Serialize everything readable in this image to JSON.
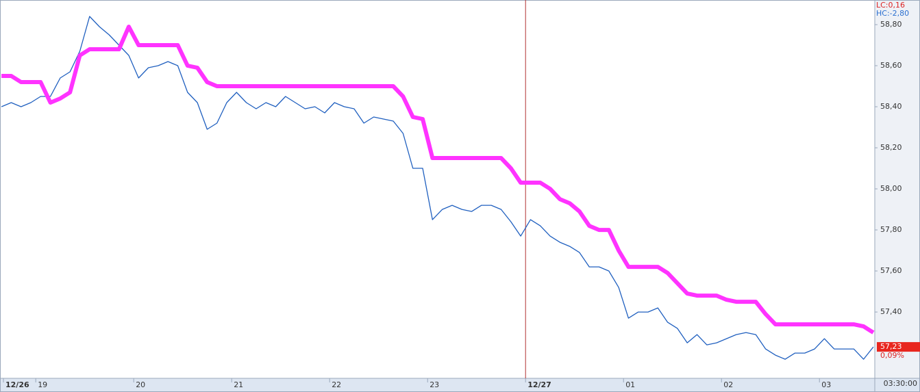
{
  "chart_data": {
    "type": "line",
    "x": [
      18.65,
      18.75,
      18.85,
      18.95,
      19.05,
      19.15,
      19.25,
      19.35,
      19.45,
      19.55,
      19.65,
      19.75,
      19.85,
      19.95,
      20.05,
      20.15,
      20.25,
      20.35,
      20.45,
      20.55,
      20.65,
      20.75,
      20.85,
      20.95,
      21.05,
      21.15,
      21.25,
      21.35,
      21.45,
      21.55,
      21.65,
      21.75,
      21.85,
      21.95,
      22.05,
      22.15,
      22.25,
      22.35,
      22.45,
      22.55,
      22.65,
      22.75,
      22.85,
      22.95,
      23.05,
      23.15,
      23.25,
      23.35,
      23.45,
      23.55,
      23.65,
      23.75,
      23.85,
      23.95,
      24.05,
      24.15,
      24.25,
      24.35,
      24.45,
      24.55,
      24.65,
      24.75,
      24.85,
      24.95,
      25.05,
      25.15,
      25.25,
      25.35,
      25.45,
      25.55,
      25.65,
      25.75,
      25.85,
      25.95,
      26.05,
      26.15,
      26.25,
      26.35,
      26.45,
      26.55,
      26.65,
      26.75,
      26.85,
      26.95,
      27.05,
      27.15,
      27.25,
      27.35,
      27.45,
      27.55
    ],
    "series": [
      {
        "color": "#1f5fbf",
        "values": [
          58.4,
          58.42,
          58.4,
          58.42,
          58.45,
          58.45,
          58.54,
          58.57,
          58.67,
          58.84,
          58.79,
          58.75,
          58.7,
          58.65,
          58.54,
          58.59,
          58.6,
          58.62,
          58.6,
          58.47,
          58.42,
          58.29,
          58.32,
          58.42,
          58.47,
          58.42,
          58.39,
          58.42,
          58.4,
          58.45,
          58.42,
          58.39,
          58.4,
          58.37,
          58.42,
          58.4,
          58.39,
          58.32,
          58.35,
          58.34,
          58.33,
          58.27,
          58.1,
          58.1,
          57.85,
          57.9,
          57.92,
          57.9,
          57.89,
          57.92,
          57.92,
          57.9,
          57.84,
          57.77,
          57.85,
          57.82,
          57.77,
          57.74,
          57.72,
          57.69,
          57.62,
          57.62,
          57.6,
          57.52,
          57.37,
          57.4,
          57.4,
          57.42,
          57.35,
          57.32,
          57.25,
          57.29,
          57.24,
          57.25,
          57.27,
          57.29,
          57.3,
          57.29,
          57.22,
          57.19,
          57.17,
          57.2,
          57.2,
          57.22,
          57.27,
          57.22,
          57.22,
          57.22,
          57.17,
          57.23
        ]
      },
      {
        "color": "#ff33ff",
        "values": [
          58.55,
          58.55,
          58.52,
          58.52,
          58.52,
          58.42,
          58.44,
          58.47,
          58.65,
          58.68,
          58.68,
          58.68,
          58.68,
          58.79,
          58.7,
          58.7,
          58.7,
          58.7,
          58.7,
          58.6,
          58.59,
          58.52,
          58.5,
          58.5,
          58.5,
          58.5,
          58.5,
          58.5,
          58.5,
          58.5,
          58.5,
          58.5,
          58.5,
          58.5,
          58.5,
          58.5,
          58.5,
          58.5,
          58.5,
          58.5,
          58.5,
          58.45,
          58.35,
          58.34,
          58.15,
          58.15,
          58.15,
          58.15,
          58.15,
          58.15,
          58.15,
          58.15,
          58.1,
          58.03,
          58.03,
          58.03,
          58.0,
          57.95,
          57.93,
          57.89,
          57.82,
          57.8,
          57.8,
          57.7,
          57.62,
          57.62,
          57.62,
          57.62,
          57.59,
          57.54,
          57.49,
          57.48,
          57.48,
          57.48,
          57.46,
          57.45,
          57.45,
          57.45,
          57.39,
          57.34,
          57.34,
          57.34,
          57.34,
          57.34,
          57.34,
          57.34,
          57.34,
          57.34,
          57.33,
          57.3
        ]
      }
    ],
    "xlim": [
      18.635,
      27.565
    ],
    "xticks": [
      {
        "value": 18.67,
        "label": "12/26"
      },
      19,
      20,
      21,
      22,
      23,
      {
        "value": 24,
        "label": "12/27"
      },
      {
        "value": 25,
        "label": "01"
      },
      {
        "value": 26,
        "label": "02"
      },
      {
        "value": 27,
        "label": "03"
      }
    ],
    "ylim": [
      57.077,
      58.92
    ],
    "yticks": [
      {
        "value": 57.4,
        "label": "57,40"
      },
      {
        "value": 57.6,
        "label": "57,60"
      },
      {
        "value": 57.8,
        "label": "57,80"
      },
      {
        "value": 58.0,
        "label": "58,00"
      },
      {
        "value": 58.2,
        "label": "58,20"
      },
      {
        "value": 58.4,
        "label": "58,40"
      },
      {
        "value": 58.6,
        "label": "58,60"
      },
      {
        "value": 58.8,
        "label": "58,80"
      }
    ],
    "divider_x": 24,
    "lc_label": "LC:0,16",
    "hc_label": "HC:-2,80",
    "last_price": {
      "value": 57.23,
      "label": "57,23"
    },
    "change": {
      "value": 0.09,
      "label": "0,09%"
    },
    "time_label": "03:30:00"
  }
}
